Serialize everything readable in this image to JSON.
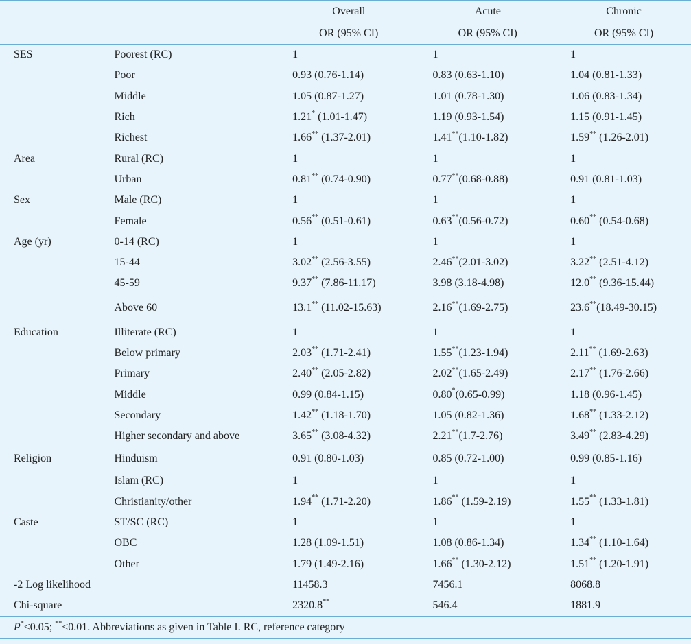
{
  "header": {
    "groups": [
      "Overall",
      "Acute",
      "Chronic"
    ],
    "sublabel": "OR (95% CI)"
  },
  "rows": [
    {
      "cat": "SES",
      "sub": "Poorest (RC)",
      "v": [
        [
          "1",
          ""
        ],
        [
          "1",
          ""
        ],
        [
          "1",
          ""
        ]
      ]
    },
    {
      "cat": "",
      "sub": "Poor",
      "v": [
        [
          "0.93 (0.76-1.14)",
          ""
        ],
        [
          "0.83 (0.63-1.10)",
          ""
        ],
        [
          "1.04 (0.81-1.33)",
          ""
        ]
      ]
    },
    {
      "cat": "",
      "sub": "Middle",
      "v": [
        [
          "1.05 (0.87-1.27)",
          ""
        ],
        [
          "1.01 (0.78-1.30)",
          ""
        ],
        [
          "1.06 (0.83-1.34)",
          ""
        ]
      ]
    },
    {
      "cat": "",
      "sub": "Rich",
      "v": [
        [
          "1.21",
          "*",
          " (1.01-1.47)"
        ],
        [
          "1.19 (0.93-1.54)",
          ""
        ],
        [
          "1.15 (0.91-1.45)",
          ""
        ]
      ]
    },
    {
      "cat": "",
      "sub": "Richest",
      "v": [
        [
          "1.66",
          "**",
          " (1.37-2.01)"
        ],
        [
          "1.41",
          "**",
          "(1.10-1.82)"
        ],
        [
          "1.59",
          "**",
          " (1.26-2.01)"
        ]
      ]
    },
    {
      "cat": "Area",
      "sub": "Rural (RC)",
      "v": [
        [
          "1",
          ""
        ],
        [
          "1",
          ""
        ],
        [
          "1",
          ""
        ]
      ]
    },
    {
      "cat": "",
      "sub": "Urban",
      "v": [
        [
          "0.81",
          "**",
          " (0.74-0.90)"
        ],
        [
          "0.77",
          "**",
          "(0.68-0.88)"
        ],
        [
          "0.91 (0.81-1.03)",
          ""
        ]
      ]
    },
    {
      "cat": "Sex",
      "sub": "Male (RC)",
      "v": [
        [
          "1",
          ""
        ],
        [
          "1",
          ""
        ],
        [
          "1",
          ""
        ]
      ]
    },
    {
      "cat": "",
      "sub": "Female",
      "v": [
        [
          "0.56",
          "**",
          " (0.51-0.61)"
        ],
        [
          "0.63",
          "**",
          "(0.56-0.72)"
        ],
        [
          "0.60",
          "**",
          " (0.54-0.68)"
        ]
      ]
    },
    {
      "cat": "Age (yr)",
      "sub": "0-14 (RC)",
      "v": [
        [
          "1",
          ""
        ],
        [
          "1",
          ""
        ],
        [
          "1",
          ""
        ]
      ]
    },
    {
      "cat": "",
      "sub": "15-44",
      "v": [
        [
          "3.02",
          "**",
          " (2.56-3.55)"
        ],
        [
          "2.46",
          "**",
          "(2.01-3.02)"
        ],
        [
          "3.22",
          "**",
          " (2.51-4.12)"
        ]
      ]
    },
    {
      "cat": "",
      "sub": "45-59",
      "v": [
        [
          "9.37",
          "**",
          " (7.86-11.17)"
        ],
        [
          "3.98 (3.18-4.98)",
          ""
        ],
        [
          "12.0",
          "**",
          " (9.36-15.44)"
        ]
      ]
    },
    {
      "cat": "",
      "sub": "Above 60",
      "tall": true,
      "v": [
        [
          "13.1",
          "**",
          " (11.02-15.63)"
        ],
        [
          "2.16",
          "**",
          "(1.69-2.75)"
        ],
        [
          "23.6",
          "**",
          "(18.49-30.15)"
        ]
      ]
    },
    {
      "cat": "Education",
      "sub": "Illiterate (RC)",
      "v": [
        [
          "1",
          ""
        ],
        [
          "1",
          ""
        ],
        [
          "1",
          ""
        ]
      ]
    },
    {
      "cat": "",
      "sub": "Below primary",
      "v": [
        [
          "2.03",
          "**",
          " (1.71-2.41)"
        ],
        [
          "1.55",
          "**",
          "(1.23-1.94)"
        ],
        [
          "2.11",
          "**",
          " (1.69-2.63)"
        ]
      ]
    },
    {
      "cat": "",
      "sub": "Primary",
      "v": [
        [
          "2.40",
          "**",
          " (2.05-2.82)"
        ],
        [
          "2.02",
          "**",
          "(1.65-2.49)"
        ],
        [
          "2.17",
          "**",
          " (1.76-2.66)"
        ]
      ]
    },
    {
      "cat": "",
      "sub": "Middle",
      "v": [
        [
          "0.99 (0.84-1.15)",
          ""
        ],
        [
          "0.80",
          "*",
          "(0.65-0.99)"
        ],
        [
          "1.18 (0.96-1.45)",
          ""
        ]
      ]
    },
    {
      "cat": "",
      "sub": "Secondary",
      "v": [
        [
          "1.42",
          "**",
          " (1.18-1.70)"
        ],
        [
          "1.05 (0.82-1.36)",
          ""
        ],
        [
          "1.68",
          "**",
          " (1.33-2.12)"
        ]
      ]
    },
    {
      "cat": "",
      "sub": "Higher secondary and above",
      "v": [
        [
          "3.65",
          "**",
          " (3.08-4.32)"
        ],
        [
          "2.21",
          "**",
          "(1.7-2.76)"
        ],
        [
          "3.49",
          "**",
          " (2.83-4.29)"
        ]
      ]
    },
    {
      "cat": "Religion",
      "sub": "Hinduism",
      "gap": true,
      "v": [
        [
          "0.91 (0.80-1.03)",
          ""
        ],
        [
          "0.85 (0.72-1.00)",
          ""
        ],
        [
          "0.99 (0.85-1.16)",
          ""
        ]
      ]
    },
    {
      "cat": "",
      "sub": "Islam (RC)",
      "v": [
        [
          "1",
          ""
        ],
        [
          "1",
          ""
        ],
        [
          "1",
          ""
        ]
      ]
    },
    {
      "cat": "",
      "sub": "Christianity/other",
      "v": [
        [
          "1.94",
          "**",
          " (1.71-2.20)"
        ],
        [
          "1.86",
          "**",
          " (1.59-2.19)"
        ],
        [
          "1.55",
          "**",
          " (1.33-1.81)"
        ]
      ]
    },
    {
      "cat": "Caste",
      "sub": "ST/SC (RC)",
      "v": [
        [
          "1",
          ""
        ],
        [
          "1",
          ""
        ],
        [
          "1",
          ""
        ]
      ]
    },
    {
      "cat": "",
      "sub": "OBC",
      "v": [
        [
          "1.28 (1.09-1.51)",
          ""
        ],
        [
          "1.08 (0.86-1.34)",
          ""
        ],
        [
          "1.34",
          "**",
          " (1.10-1.64)"
        ]
      ]
    },
    {
      "cat": "",
      "sub": "Other",
      "v": [
        [
          "1.79 (1.49-2.16)",
          ""
        ],
        [
          "1.66",
          "**",
          " (1.30-2.12)"
        ],
        [
          "1.51",
          "**",
          " (1.20-1.91)"
        ]
      ]
    },
    {
      "cat": "-2 Log likelihood",
      "sub": "",
      "v": [
        [
          "11458.3",
          ""
        ],
        [
          "7456.1",
          ""
        ],
        [
          "8068.8",
          ""
        ]
      ]
    },
    {
      "cat": "Chi-square",
      "sub": "",
      "v": [
        [
          "2320.8",
          "**",
          ""
        ],
        [
          "546.4",
          ""
        ],
        [
          "1881.9",
          ""
        ]
      ]
    }
  ],
  "footnote": {
    "p_letter": "P",
    "sup1": "*",
    "part1": "<0.05; ",
    "sup2": "**",
    "part2": "<0.01. Abbreviations as given in Table I. RC, reference category"
  }
}
